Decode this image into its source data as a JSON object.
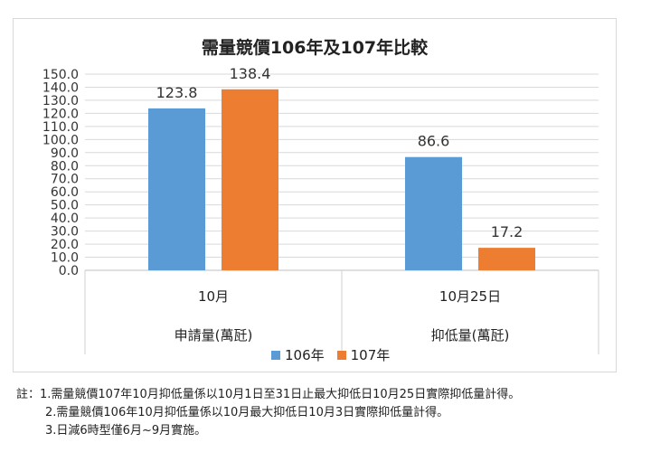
{
  "chart_data": {
    "type": "bar",
    "title": "需量競價106年及107年比較",
    "categories": [
      "10月",
      "10月25日"
    ],
    "group_labels": [
      "申請量(萬瓩)",
      "抑低量(萬瓩)"
    ],
    "series": [
      {
        "name": "106年",
        "values": [
          123.8,
          86.6
        ],
        "color": "#5b9bd5"
      },
      {
        "name": "107年",
        "values": [
          138.4,
          17.2
        ],
        "color": "#ed7d31"
      }
    ],
    "value_labels": [
      [
        "123.8",
        "86.6"
      ],
      [
        "138.4",
        "17.2"
      ]
    ],
    "ylim": [
      0,
      150
    ],
    "ytick_step": 10,
    "yticks": [
      "0.0",
      "10.0",
      "20.0",
      "30.0",
      "40.0",
      "50.0",
      "60.0",
      "70.0",
      "80.0",
      "90.0",
      "100.0",
      "110.0",
      "120.0",
      "130.0",
      "140.0",
      "150.0"
    ],
    "grid": true,
    "legend": "bottom"
  },
  "notes": [
    "註：1.需量競價107年10月抑低量係以10月1日至31日止最大抑低日10月25日實際抑低量計得。",
    "2.需量競價106年10月抑低量係以10月最大抑低日10月3日實際抑低量計得。",
    "3.日減6時型僅6月~9月實施。"
  ]
}
